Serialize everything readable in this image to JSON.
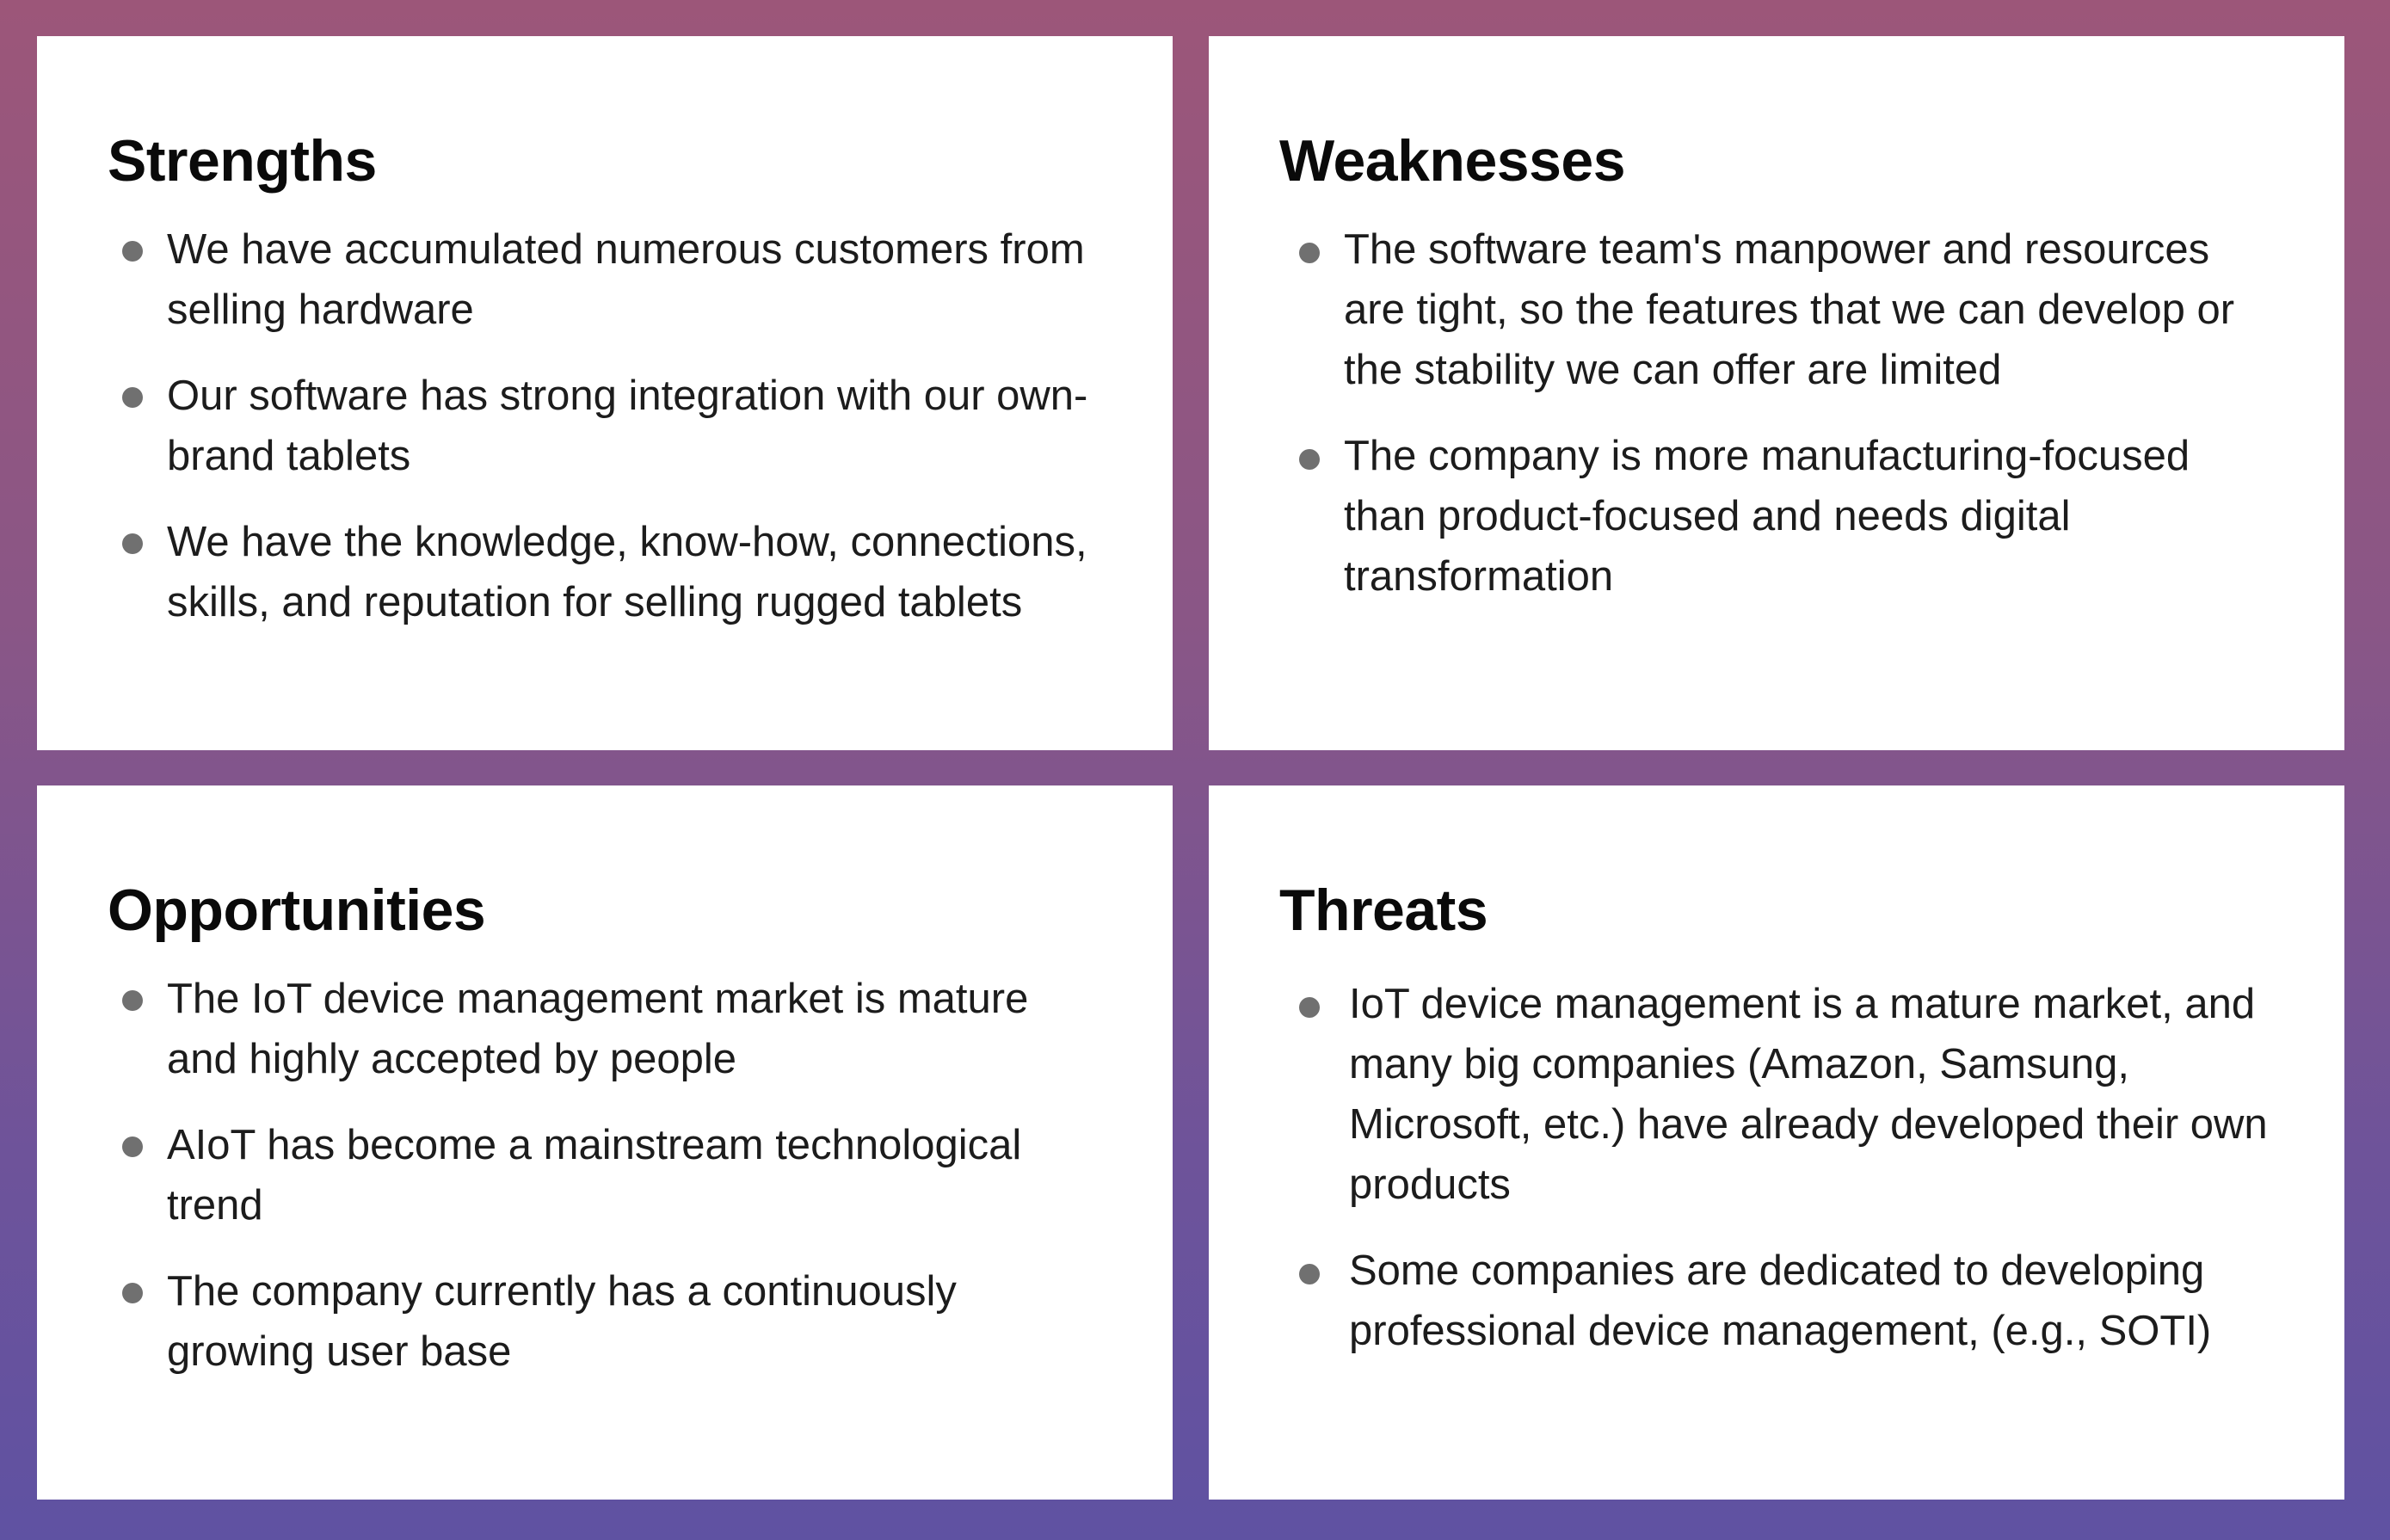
{
  "swot": {
    "strengths": {
      "title": "Strengths",
      "items": [
        "We have accumulated numerous customers from selling hardware",
        "Our software has strong integration with our own-brand tablets",
        "We have the knowledge, know-how, connections, skills, and reputation for selling rugged tablets"
      ]
    },
    "weaknesses": {
      "title": "Weaknesses",
      "items": [
        "The software team's manpower and resources are tight, so the features that we can develop or the stability we can offer are limited",
        "The company is more manufacturing-focused than product-focused and needs digital transformation"
      ]
    },
    "opportunities": {
      "title": "Opportunities",
      "items": [
        "The IoT device management market is mature and highly accepted by people",
        "AIoT has become a mainstream technological trend",
        "The company currently has a continuously growing user base"
      ]
    },
    "threats": {
      "title": "Threats",
      "items": [
        "IoT device management is a mature market, and many big companies (Amazon, Samsung, Microsoft, etc.) have already developed their own products",
        "Some companies are dedicated to developing professional device management, (e.g., SOTI)"
      ]
    }
  },
  "colors": {
    "background_top": "#9c5679",
    "background_bottom": "#5f52a2",
    "card": "#ffffff",
    "bullet": "#707070",
    "title_text": "#0a0a0a",
    "body_text": "#1c1c1c"
  }
}
